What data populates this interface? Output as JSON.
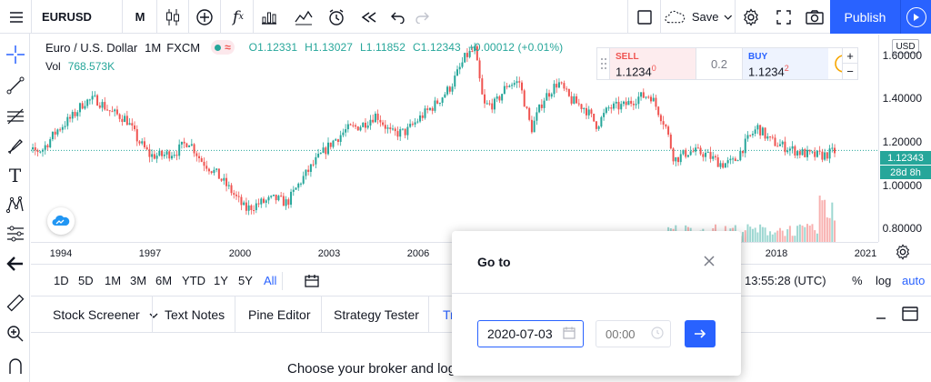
{
  "toolbar": {
    "symbol": "EURUSD",
    "interval": "M",
    "save_label": "Save",
    "publish_label": "Publish",
    "icons": [
      "menu-icon",
      "search-icon",
      "candles-icon",
      "add-compare-icon",
      "indicators-icon",
      "bar-style-icon",
      "templates-icon",
      "alert-icon",
      "replay-icon",
      "undo-icon",
      "redo-icon",
      "layout-icon",
      "cloud-icon",
      "settings-icon",
      "fullscreen-icon",
      "camera-icon",
      "play-icon"
    ]
  },
  "legend": {
    "title": "Euro / U.S. Dollar",
    "interval": "1M",
    "exchange": "FXCM",
    "open": "O1.12331",
    "high": "H1.13027",
    "low": "L1.11852",
    "close": "C1.12343",
    "change": "+0.00012 (+0.01%)",
    "vol_label": "Vol",
    "vol_value": "768.573K"
  },
  "trade": {
    "sell_label": "SELL",
    "sell_price_main": "1.1234",
    "sell_price_sup": "0",
    "spread": "0.2",
    "buy_label": "BUY",
    "buy_price_main": "1.1234",
    "buy_price_sup": "2",
    "plus": "+",
    "minus": "−"
  },
  "price_axis": {
    "currency": "USD",
    "ticks": [
      "1.60000",
      "1.40000",
      "1.20000",
      "1.00000",
      "0.80000"
    ],
    "last_price": "1.12343",
    "countdown": "28d 8h"
  },
  "time_axis": {
    "ticks": [
      "1994",
      "1997",
      "2000",
      "2003",
      "2006",
      "2018",
      "2021"
    ]
  },
  "ranges": {
    "items": [
      "1D",
      "5D",
      "1M",
      "3M",
      "6M",
      "YTD",
      "1Y",
      "5Y",
      "All"
    ],
    "active": "All",
    "time": "13:55:28 (UTC)",
    "percent": "%",
    "log": "log",
    "auto": "auto"
  },
  "tabs": {
    "items": [
      "Stock Screener",
      "Text Notes",
      "Pine Editor",
      "Strategy Tester",
      "Tr"
    ],
    "panel_text": "Choose your broker and log"
  },
  "dialog": {
    "title": "Go to",
    "date_value": "2020-07-03",
    "time_placeholder": "00:00"
  },
  "colors": {
    "up": "#26a69a",
    "down": "#ef5350",
    "accent": "#2962ff"
  },
  "chart_data": {
    "type": "candlestick",
    "x_range": [
      1993,
      2021
    ],
    "ylim": [
      0.7,
      1.66
    ],
    "last_price": 1.12343,
    "series_close": [
      [
        1993.0,
        1.18
      ],
      [
        1993.5,
        1.11
      ],
      [
        1994.0,
        1.13
      ],
      [
        1994.5,
        1.22
      ],
      [
        1995.0,
        1.28
      ],
      [
        1995.4,
        1.35
      ],
      [
        1995.8,
        1.36
      ],
      [
        1996.3,
        1.3
      ],
      [
        1996.8,
        1.27
      ],
      [
        1997.2,
        1.17
      ],
      [
        1997.6,
        1.1
      ],
      [
        1998.0,
        1.1
      ],
      [
        1998.5,
        1.12
      ],
      [
        1998.9,
        1.17
      ],
      [
        1999.3,
        1.08
      ],
      [
        1999.8,
        1.02
      ],
      [
        2000.3,
        0.94
      ],
      [
        2000.8,
        0.85
      ],
      [
        2001.3,
        0.88
      ],
      [
        2001.8,
        0.9
      ],
      [
        2002.2,
        0.88
      ],
      [
        2002.7,
        0.99
      ],
      [
        2003.2,
        1.08
      ],
      [
        2003.7,
        1.16
      ],
      [
        2004.2,
        1.22
      ],
      [
        2004.7,
        1.24
      ],
      [
        2005.2,
        1.29
      ],
      [
        2005.7,
        1.2
      ],
      [
        2006.2,
        1.21
      ],
      [
        2006.7,
        1.28
      ],
      [
        2007.2,
        1.34
      ],
      [
        2007.7,
        1.42
      ],
      [
        2008.2,
        1.56
      ],
      [
        2008.5,
        1.59
      ],
      [
        2008.8,
        1.33
      ],
      [
        2009.2,
        1.34
      ],
      [
        2009.6,
        1.43
      ],
      [
        2010.0,
        1.44
      ],
      [
        2010.4,
        1.22
      ],
      [
        2010.8,
        1.36
      ],
      [
        2011.3,
        1.44
      ],
      [
        2011.7,
        1.36
      ],
      [
        2012.2,
        1.32
      ],
      [
        2012.6,
        1.24
      ],
      [
        2013.0,
        1.32
      ],
      [
        2013.5,
        1.33
      ],
      [
        2014.0,
        1.37
      ],
      [
        2014.4,
        1.38
      ],
      [
        2014.9,
        1.24
      ],
      [
        2015.2,
        1.08
      ],
      [
        2015.7,
        1.12
      ],
      [
        2016.2,
        1.11
      ],
      [
        2016.8,
        1.06
      ],
      [
        2017.2,
        1.07
      ],
      [
        2017.7,
        1.18
      ],
      [
        2018.0,
        1.23
      ],
      [
        2018.4,
        1.17
      ],
      [
        2018.9,
        1.14
      ],
      [
        2019.3,
        1.12
      ],
      [
        2019.8,
        1.1
      ],
      [
        2020.2,
        1.1
      ],
      [
        2020.6,
        1.12
      ]
    ]
  }
}
